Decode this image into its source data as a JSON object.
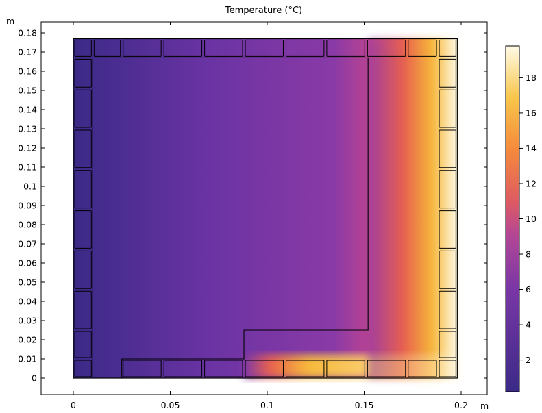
{
  "chart_data": {
    "type": "heatmap",
    "title": "Temperature (°C)",
    "x_unit": "m",
    "y_unit": "m",
    "xlim": [
      -0.016,
      0.214
    ],
    "ylim": [
      -0.008,
      0.184
    ],
    "x_ticks": [
      "0",
      "0.05",
      "0.1",
      "0.15",
      "0.2"
    ],
    "x_tick_values": [
      0,
      0.05,
      0.1,
      0.15,
      0.2
    ],
    "y_ticks": [
      "0",
      "0.01",
      "0.02",
      "0.03",
      "0.04",
      "0.05",
      "0.06",
      "0.07",
      "0.08",
      "0.09",
      "0.1",
      "0.11",
      "0.12",
      "0.13",
      "0.14",
      "0.15",
      "0.16",
      "0.17",
      "0.18"
    ],
    "y_tick_values": [
      0,
      0.01,
      0.02,
      0.03,
      0.04,
      0.05,
      0.06,
      0.07,
      0.08,
      0.09,
      0.1,
      0.11,
      0.12,
      0.13,
      0.14,
      0.15,
      0.16,
      0.17,
      0.18
    ],
    "colorbar": {
      "ticks": [
        "2",
        "4",
        "6",
        "8",
        "10",
        "12",
        "14",
        "16",
        "18"
      ],
      "tick_values": [
        2,
        4,
        6,
        8,
        10,
        12,
        14,
        16,
        18
      ],
      "range": [
        0.2,
        19.8
      ]
    },
    "colors": {
      "cold": "#3b2a87",
      "mid": "#8a3aa6",
      "warm": "#e8604f",
      "hot": "#f7b93a",
      "hottest": "#fffbe8"
    },
    "domain": {
      "outer": [
        0,
        0,
        0.198,
        0.177
      ],
      "inner_region": [
        [
          0.01,
          0.0
        ],
        [
          0.01,
          0.167
        ],
        [
          0.152,
          0.167
        ],
        [
          0.152,
          0.025
        ],
        [
          0.088,
          0.025
        ],
        [
          0.088,
          0.01
        ],
        [
          0.025,
          0.01
        ],
        [
          0.025,
          0.0
        ]
      ]
    },
    "temperature_samples": [
      {
        "x": 0.0,
        "y": 0.09,
        "value": 1.5
      },
      {
        "x": 0.05,
        "y": 0.09,
        "value": 4
      },
      {
        "x": 0.1,
        "y": 0.09,
        "value": 5.5
      },
      {
        "x": 0.15,
        "y": 0.09,
        "value": 8.5
      },
      {
        "x": 0.17,
        "y": 0.09,
        "value": 14
      },
      {
        "x": 0.19,
        "y": 0.09,
        "value": 19
      },
      {
        "x": 0.1,
        "y": 0.005,
        "value": 14
      },
      {
        "x": 0.17,
        "y": 0.005,
        "value": 19
      }
    ]
  }
}
